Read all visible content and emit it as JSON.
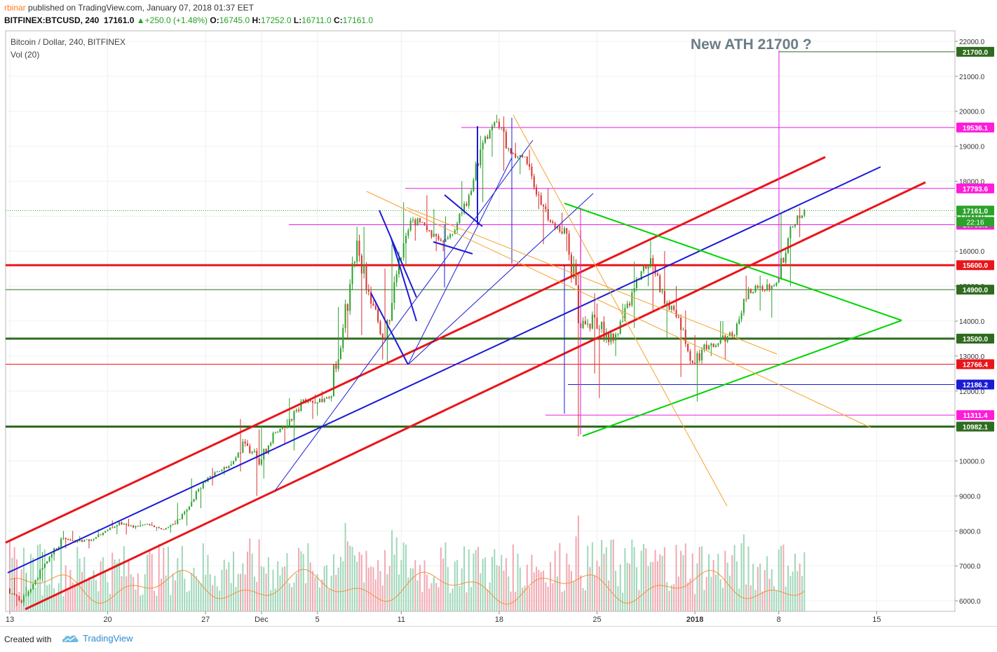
{
  "header": {
    "publisher_user": "rbinar",
    "publisher_text": " published on TradingView.com, January 07, 2018 01:37 EET",
    "symbol": "BITFINEX:BTCUSD, 240",
    "last": "17161.0",
    "change": "▲+250.0 (+1.48%)",
    "open_label": "O:",
    "open": "16745.0",
    "high_label": "H:",
    "high": "17252.0",
    "low_label": "L:",
    "low": "16711.0",
    "close_label": "C:",
    "close": "17161.0"
  },
  "legend": {
    "title": "Bitcoin / Dollar, 240, BITFINEX",
    "volume": "Vol (20)"
  },
  "annotation": "New ATH 21700 ?",
  "footer": {
    "created": "Created with",
    "brand": "TradingView"
  },
  "colors": {
    "up": "#2aa32a",
    "down": "#d8332f",
    "vol_up": "#9fd7b9",
    "vol_down": "#f2a8b1",
    "red_line": "#e8161b",
    "blue_line": "#1b1bd6",
    "green_line": "#00d400",
    "orange_line": "#f6a32e",
    "magenta": "#e61ee6",
    "dark_green": "#2f6b1f"
  },
  "chart_data": {
    "type": "candlestick",
    "interval": "240",
    "y_axis": {
      "min": 5700,
      "max": 22300,
      "ticks": [
        "6000.0",
        "7000.0",
        "8000.0",
        "9000.0",
        "10000.0",
        "11000.0",
        "12000.0",
        "13000.0",
        "14000.0",
        "15000.0",
        "16000.0",
        "17000.0",
        "18000.0",
        "19000.0",
        "20000.0",
        "21000.0",
        "22000.0"
      ]
    },
    "x_axis": {
      "ticks": [
        "13",
        "20",
        "27",
        "Dec",
        "5",
        "11",
        "18",
        "25",
        "2018",
        "8",
        "15"
      ],
      "tick_days": [
        13,
        20,
        27,
        31,
        35,
        41,
        48,
        55,
        62,
        68,
        75
      ]
    },
    "x_day_range": [
      12.7,
      80.6
    ],
    "ohlc_daily": [
      {
        "d": 13,
        "o": 6350,
        "h": 6650,
        "l": 5850,
        "c": 5950
      },
      {
        "d": 14,
        "o": 5950,
        "h": 6800,
        "l": 5850,
        "c": 6600
      },
      {
        "d": 15,
        "o": 6600,
        "h": 7400,
        "l": 6550,
        "c": 7250
      },
      {
        "d": 16,
        "o": 7250,
        "h": 8000,
        "l": 7150,
        "c": 7800
      },
      {
        "d": 17,
        "o": 7800,
        "h": 8000,
        "l": 7500,
        "c": 7700
      },
      {
        "d": 18,
        "o": 7700,
        "h": 7850,
        "l": 7500,
        "c": 7750
      },
      {
        "d": 19,
        "o": 7750,
        "h": 8050,
        "l": 7700,
        "c": 8000
      },
      {
        "d": 20,
        "o": 8000,
        "h": 8300,
        "l": 7900,
        "c": 8250
      },
      {
        "d": 21,
        "o": 8250,
        "h": 8350,
        "l": 7900,
        "c": 8100
      },
      {
        "d": 22,
        "o": 8100,
        "h": 8300,
        "l": 8050,
        "c": 8200
      },
      {
        "d": 23,
        "o": 8200,
        "h": 8250,
        "l": 8000,
        "c": 8050
      },
      {
        "d": 24,
        "o": 8050,
        "h": 8300,
        "l": 7950,
        "c": 8200
      },
      {
        "d": 25,
        "o": 8200,
        "h": 8800,
        "l": 8150,
        "c": 8700
      },
      {
        "d": 26,
        "o": 8700,
        "h": 9500,
        "l": 8650,
        "c": 9400
      },
      {
        "d": 27,
        "o": 9400,
        "h": 9800,
        "l": 9300,
        "c": 9700
      },
      {
        "d": 28,
        "o": 9700,
        "h": 10000,
        "l": 9600,
        "c": 9900
      },
      {
        "d": 29,
        "o": 9900,
        "h": 11200,
        "l": 9700,
        "c": 10500
      },
      {
        "d": 30,
        "o": 10500,
        "h": 10900,
        "l": 9000,
        "c": 9900
      },
      {
        "d": 31,
        "o": 9900,
        "h": 11000,
        "l": 9500,
        "c": 10800
      },
      {
        "d": 32,
        "o": 10800,
        "h": 11200,
        "l": 10500,
        "c": 11000
      },
      {
        "d": 33,
        "o": 11000,
        "h": 11800,
        "l": 10300,
        "c": 11700
      },
      {
        "d": 34,
        "o": 11700,
        "h": 11900,
        "l": 11200,
        "c": 11650
      },
      {
        "d": 35,
        "o": 11650,
        "h": 12000,
        "l": 11300,
        "c": 11800
      },
      {
        "d": 36,
        "o": 11800,
        "h": 14400,
        "l": 11700,
        "c": 13800
      },
      {
        "d": 37,
        "o": 13800,
        "h": 16700,
        "l": 13500,
        "c": 16300
      },
      {
        "d": 38,
        "o": 16300,
        "h": 16700,
        "l": 13600,
        "c": 14500
      },
      {
        "d": 39,
        "o": 14500,
        "h": 15500,
        "l": 12900,
        "c": 13500
      },
      {
        "d": 40,
        "o": 13500,
        "h": 16200,
        "l": 12800,
        "c": 15800
      },
      {
        "d": 41,
        "o": 15800,
        "h": 17400,
        "l": 15600,
        "c": 16900
      },
      {
        "d": 42,
        "o": 16900,
        "h": 17600,
        "l": 16300,
        "c": 16600
      },
      {
        "d": 43,
        "o": 16600,
        "h": 17200,
        "l": 16000,
        "c": 16300
      },
      {
        "d": 44,
        "o": 16300,
        "h": 17000,
        "l": 16000,
        "c": 16600
      },
      {
        "d": 45,
        "o": 16600,
        "h": 18000,
        "l": 16500,
        "c": 17600
      },
      {
        "d": 46,
        "o": 17600,
        "h": 19300,
        "l": 17400,
        "c": 19100
      },
      {
        "d": 47,
        "o": 19100,
        "h": 19900,
        "l": 18700,
        "c": 19700
      },
      {
        "d": 48,
        "o": 19700,
        "h": 19850,
        "l": 18300,
        "c": 18800
      },
      {
        "d": 49,
        "o": 18800,
        "h": 19100,
        "l": 18200,
        "c": 18700
      },
      {
        "d": 50,
        "o": 18700,
        "h": 18900,
        "l": 17200,
        "c": 17600
      },
      {
        "d": 51,
        "o": 17600,
        "h": 17800,
        "l": 16200,
        "c": 16800
      },
      {
        "d": 52,
        "o": 16800,
        "h": 17100,
        "l": 16000,
        "c": 16500
      },
      {
        "d": 53,
        "o": 16500,
        "h": 16600,
        "l": 10700,
        "c": 13800
      },
      {
        "d": 54,
        "o": 13800,
        "h": 14800,
        "l": 12500,
        "c": 14100
      },
      {
        "d": 55,
        "o": 14100,
        "h": 14500,
        "l": 11800,
        "c": 13400
      },
      {
        "d": 56,
        "o": 13400,
        "h": 14500,
        "l": 13000,
        "c": 14000
      },
      {
        "d": 57,
        "o": 14000,
        "h": 15700,
        "l": 13800,
        "c": 15200
      },
      {
        "d": 58,
        "o": 15200,
        "h": 16300,
        "l": 15000,
        "c": 15800
      },
      {
        "d": 59,
        "o": 15800,
        "h": 16000,
        "l": 14300,
        "c": 14500
      },
      {
        "d": 60,
        "o": 14500,
        "h": 15000,
        "l": 13500,
        "c": 14100
      },
      {
        "d": 61,
        "o": 14100,
        "h": 14300,
        "l": 12400,
        "c": 12800
      },
      {
        "d": 62,
        "o": 12800,
        "h": 13600,
        "l": 11700,
        "c": 13200
      },
      {
        "d": 63,
        "o": 13200,
        "h": 14000,
        "l": 13000,
        "c": 13500
      },
      {
        "d": 64,
        "o": 13500,
        "h": 14000,
        "l": 12900,
        "c": 13600
      },
      {
        "d": 65,
        "o": 13600,
        "h": 15300,
        "l": 13500,
        "c": 14900
      },
      {
        "d": 66,
        "o": 14900,
        "h": 15300,
        "l": 14300,
        "c": 14900
      },
      {
        "d": 67,
        "o": 14900,
        "h": 15200,
        "l": 14100,
        "c": 15100
      },
      {
        "d": 68,
        "o": 15100,
        "h": 17100,
        "l": 15000,
        "c": 16700
      },
      {
        "d": 69,
        "o": 16700,
        "h": 17250,
        "l": 16400,
        "c": 17161
      }
    ],
    "volume_ma_label": "Vol (20)",
    "horizontal_levels": [
      {
        "price": 21700.0,
        "label": "21700.0",
        "color": "#2f6b1f"
      },
      {
        "price": 19536.1,
        "label": "19536.1",
        "color": "#e61ee6"
      },
      {
        "price": 17793.6,
        "label": "17793.6",
        "color": "#e61ee6"
      },
      {
        "price": 17161.0,
        "label": "17161.0",
        "color": "#2aa32a"
      },
      {
        "price": 16755.5,
        "label": "16755.5",
        "color": "#e61ee6"
      },
      {
        "price": 15600.0,
        "label": "15600.0",
        "color": "#e8161b"
      },
      {
        "price": 14900.0,
        "label": "14900.0",
        "color": "#2f6b1f"
      },
      {
        "price": 13500.0,
        "label": "13500.0",
        "color": "#2f6b1f"
      },
      {
        "price": 12766.4,
        "label": "12766.4",
        "color": "#e8161b"
      },
      {
        "price": 12186.2,
        "label": "12186.2",
        "color": "#1b1bd6"
      },
      {
        "price": 11311.4,
        "label": "11311.4",
        "color": "#e61ee6"
      },
      {
        "price": 10982.1,
        "label": "10982.1",
        "color": "#2f6b1f"
      }
    ],
    "countdown_label": "22:16"
  }
}
